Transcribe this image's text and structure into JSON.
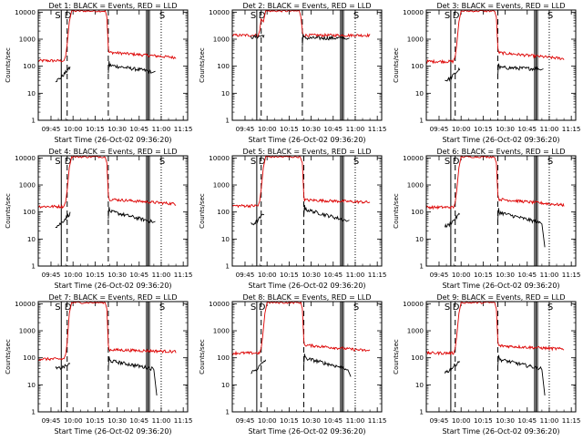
{
  "chart_data": {
    "type": "line",
    "layout": "3x3 grid",
    "yscale": "log",
    "ylim": [
      1,
      12000
    ],
    "ylabel": "Counts/sec",
    "xlabel": "Start Time (26-Oct-02 09:36:20)",
    "xlim": [
      "09:36:20",
      "11:18:00"
    ],
    "x_ticks": [
      "09:45",
      "10:00",
      "10:15",
      "10:30",
      "10:45",
      "11:00",
      "11:15"
    ],
    "y_ticks": [
      "1",
      "10",
      "100",
      "1000",
      "10000"
    ],
    "colors": {
      "events": "#000000",
      "lld": "#dd0000",
      "axes": "#000000"
    },
    "markers": [
      "S",
      "D",
      "S"
    ],
    "series_names": [
      "BLACK = Events",
      "RED = LLD"
    ],
    "panels": [
      {
        "title": "Det 1: BLACK = Events, RED = LLD",
        "vlines_solid": [
          "09:52",
          "10:50",
          "10:51",
          "10:52"
        ],
        "vlines_dashed": [
          "09:56",
          "10:24"
        ],
        "vlines_dotted": [
          "11:00"
        ],
        "lld": {
          "pre": 160,
          "rise_time": "09:56",
          "peak": 11000,
          "fall_time": "10:24",
          "post": 330,
          "end": 210
        },
        "events": {
          "start": "09:48",
          "pre": 30,
          "rise_to": 90,
          "gap_start": "09:58",
          "resume": "10:24",
          "post": 110,
          "end": 65,
          "end_time": "10:56"
        }
      },
      {
        "title": "Det 2: BLACK = Events, RED = LLD",
        "vlines_solid": [
          "09:53",
          "10:50",
          "10:51",
          "10:52"
        ],
        "vlines_dashed": [
          "09:56",
          "10:24"
        ],
        "vlines_dotted": [
          "11:00"
        ],
        "lld": {
          "pre": 1400,
          "rise_time": "09:56",
          "peak": 11000,
          "fall_time": "10:24",
          "post": 1400,
          "end": 1400
        },
        "events": {
          "start": "09:49",
          "pre": 1200,
          "rise_to": 1400,
          "gap_start": "09:58",
          "resume": "10:24",
          "post": 1100,
          "end": 1100,
          "end_time": "10:56"
        }
      },
      {
        "title": "Det 3: BLACK = Events, RED = LLD",
        "vlines_solid": [
          "09:53",
          "10:50",
          "10:51",
          "10:52"
        ],
        "vlines_dashed": [
          "09:56",
          "10:25"
        ],
        "vlines_dotted": [
          "11:00"
        ],
        "lld": {
          "pre": 150,
          "rise_time": "09:57",
          "peak": 11000,
          "fall_time": "10:25",
          "post": 320,
          "end": 190
        },
        "events": {
          "start": "09:49",
          "pre": 30,
          "rise_to": 80,
          "gap_start": "09:59",
          "resume": "10:25",
          "post": 90,
          "end": 80,
          "end_time": "10:56"
        }
      },
      {
        "title": "Det 4: BLACK = Events, RED = LLD",
        "vlines_solid": [
          "09:52",
          "10:50",
          "10:51",
          "10:52"
        ],
        "vlines_dashed": [
          "09:56",
          "10:24"
        ],
        "vlines_dotted": [
          "11:00"
        ],
        "lld": {
          "pre": 160,
          "rise_time": "09:56",
          "peak": 11000,
          "fall_time": "10:24",
          "post": 300,
          "end": 200
        },
        "events": {
          "start": "09:48",
          "pre": 30,
          "rise_to": 90,
          "gap_start": "09:58",
          "resume": "10:24",
          "post": 110,
          "end": 45,
          "end_time": "10:56"
        }
      },
      {
        "title": "Det 5: BLACK = Events, RED = LLD",
        "vlines_solid": [
          "09:53",
          "10:50",
          "10:51",
          "10:52"
        ],
        "vlines_dashed": [
          "09:56",
          "10:25"
        ],
        "vlines_dotted": [
          "11:00"
        ],
        "lld": {
          "pre": 170,
          "rise_time": "09:56",
          "peak": 11000,
          "fall_time": "10:25",
          "post": 280,
          "end": 230
        },
        "events": {
          "start": "09:49",
          "pre": 35,
          "rise_to": 90,
          "gap_start": "09:58",
          "resume": "10:25",
          "post": 130,
          "end": 50,
          "end_time": "10:56"
        }
      },
      {
        "title": "Det 6: BLACK = Events, RED = LLD",
        "vlines_solid": [
          "09:53",
          "10:50",
          "10:51",
          "10:52"
        ],
        "vlines_dashed": [
          "09:56",
          "10:25"
        ],
        "vlines_dotted": [
          "11:00"
        ],
        "lld": {
          "pre": 150,
          "rise_time": "09:57",
          "peak": 11000,
          "fall_time": "10:25",
          "post": 300,
          "end": 180
        },
        "events": {
          "start": "09:49",
          "pre": 30,
          "rise_to": 85,
          "gap_start": "09:59",
          "resume": "10:25",
          "post": 100,
          "end": 5,
          "end_time": "10:57"
        }
      },
      {
        "title": "Det 7: BLACK = Events, RED = LLD",
        "vlines_solid": [
          "09:52",
          "10:50",
          "10:51",
          "10:52"
        ],
        "vlines_dashed": [
          "09:56",
          "10:24"
        ],
        "vlines_dotted": [
          "11:00"
        ],
        "lld": {
          "pre": 90,
          "rise_time": "09:56",
          "peak": 11000,
          "fall_time": "10:24",
          "post": 200,
          "end": 170
        },
        "events": {
          "start": "09:48",
          "pre": 40,
          "rise_to": 60,
          "gap_start": "09:58",
          "resume": "10:24",
          "post": 80,
          "end": 4,
          "end_time": "10:57"
        }
      },
      {
        "title": "Det 8: BLACK = Events, RED = LLD",
        "vlines_solid": [
          "09:53",
          "10:50",
          "10:51",
          "10:52"
        ],
        "vlines_dashed": [
          "09:56",
          "10:25"
        ],
        "vlines_dotted": [
          "11:00"
        ],
        "lld": {
          "pre": 150,
          "rise_time": "09:57",
          "peak": 11000,
          "fall_time": "10:25",
          "post": 300,
          "end": 180
        },
        "events": {
          "start": "09:49",
          "pre": 30,
          "rise_to": 85,
          "gap_start": "09:59",
          "resume": "10:25",
          "post": 100,
          "end": 20,
          "end_time": "10:57"
        }
      },
      {
        "title": "Det 9: BLACK = Events, RED = LLD",
        "vlines_solid": [
          "09:53",
          "10:50",
          "10:51",
          "10:52"
        ],
        "vlines_dashed": [
          "09:56",
          "10:25"
        ],
        "vlines_dotted": [
          "11:00"
        ],
        "lld": {
          "pre": 150,
          "rise_time": "09:57",
          "peak": 11000,
          "fall_time": "10:25",
          "post": 280,
          "end": 210
        },
        "events": {
          "start": "09:49",
          "pre": 30,
          "rise_to": 80,
          "gap_start": "09:59",
          "resume": "10:25",
          "post": 90,
          "end": 4,
          "end_time": "10:57"
        }
      }
    ]
  }
}
